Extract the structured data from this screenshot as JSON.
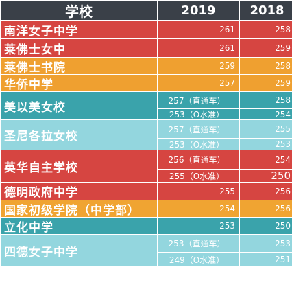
{
  "header": {
    "school": "学校",
    "y2019": "2019",
    "y2018": "2018"
  },
  "rows": [
    {
      "name": "南洋女子中学",
      "v2019": "261",
      "v2018": "258"
    },
    {
      "name": "莱佛士女中",
      "v2019": "261",
      "v2018": "259"
    },
    {
      "name": "莱佛士书院",
      "v2019": "259",
      "v2018": "258"
    },
    {
      "name": "华侨中学",
      "v2019": "257",
      "v2018": "259"
    },
    {
      "name": "美以美女校",
      "v2019a": "257（直通车）",
      "v2018a": "258",
      "v2019b": "253（O水准）",
      "v2018b": "254"
    },
    {
      "name": "圣尼各拉女校",
      "v2019a": "257（直通车）",
      "v2018a": "255",
      "v2019b": "253（O水准）",
      "v2018b": "253"
    },
    {
      "name": "英华自主学校",
      "v2019a": "256（直通车）",
      "v2018a": "254",
      "v2019b": "255（O水准）",
      "v2018b": "250"
    },
    {
      "name": "德明政府中学",
      "v2019": "255",
      "v2018": "256"
    },
    {
      "name": "国家初级学院（中学部）",
      "v2019": "254",
      "v2018": "256"
    },
    {
      "name": "立化中学",
      "v2019": "253",
      "v2018": "250"
    },
    {
      "name": "四德女子中学",
      "v2019a": "253（直通车）",
      "v2018a": "253",
      "v2019b": "249（O水准）",
      "v2018b": "251"
    }
  ],
  "colors": {
    "header": "#3a4048",
    "red": "#d64541",
    "orange": "#efa030",
    "teal": "#3aa3ab",
    "lightblue": "#93d6de"
  }
}
